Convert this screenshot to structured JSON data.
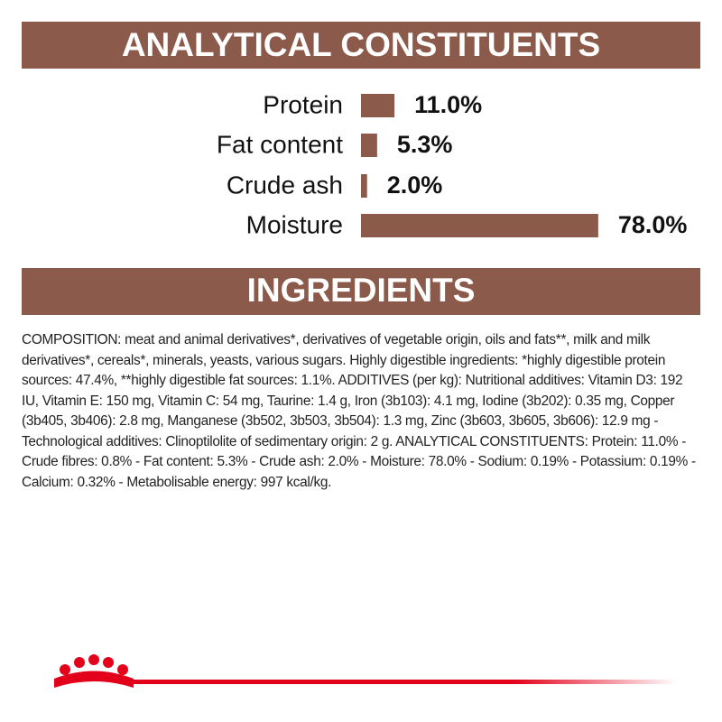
{
  "chart_data": {
    "type": "bar",
    "orientation": "horizontal",
    "title": "ANALYTICAL CONSTITUENTS",
    "categories": [
      "Protein",
      "Fat content",
      "Crude ash",
      "Moisture"
    ],
    "values": [
      11.0,
      5.3,
      2.0,
      78.0
    ],
    "value_labels": [
      "11.0%",
      "5.3%",
      "2.0%",
      "78.0%"
    ],
    "color": "#8c5a4a"
  },
  "ingredients": {
    "title": "INGREDIENTS",
    "text": "COMPOSITION: meat and animal derivatives*, derivatives of vegetable origin, oils and fats**, milk and milk derivatives*, cereals*, minerals, yeasts, various sugars. Highly digestible ingredients: *highly digestible protein sources: 47.4%, **highly digestible fat sources: 1.1%. ADDITIVES (per kg): Nutritional additives: Vitamin D3: 192 IU, Vitamin E: 150 mg, Vitamin C: 54 mg, Taurine: 1.4 g, Iron (3b103): 4.1 mg, Iodine (3b202): 0.35 mg, Copper (3b405, 3b406): 2.8 mg, Manganese (3b502, 3b503, 3b504): 1.3 mg, Zinc (3b603, 3b605, 3b606): 12.9 mg - Technological additives: Clinoptilolite of sedimentary origin: 2 g. ANALYTICAL CONSTITUENTS: Protein: 11.0% - Crude fibres: 0.8% - Fat content: 5.3% - Crude ash: 2.0% - Moisture: 78.0% - Sodium: 0.19% - Potassium: 0.19% - Calcium: 0.32% - Metabolisable energy: 997 kcal/kg."
  }
}
